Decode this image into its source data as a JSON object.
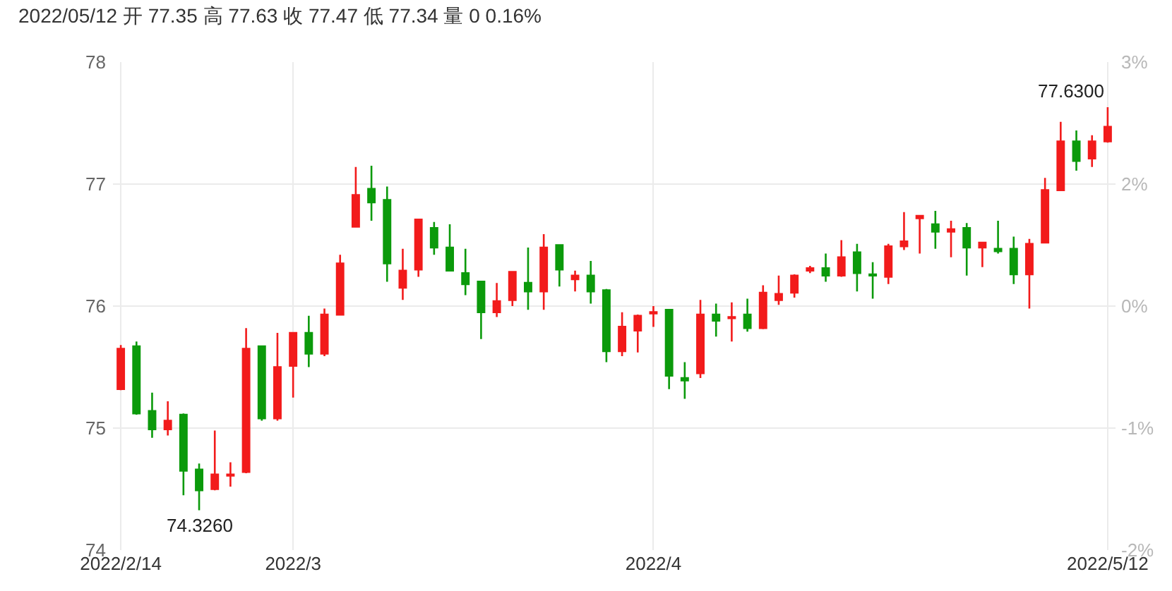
{
  "chart_data": {
    "type": "candlestick",
    "title": "2022/05/12 开 77.35 高 77.63 收 77.47 低 77.34 量 0 0.16%",
    "categories": [
      "2022/2/14",
      null,
      null,
      null,
      null,
      null,
      null,
      null,
      null,
      null,
      null,
      "2022/3",
      null,
      null,
      null,
      null,
      null,
      null,
      null,
      null,
      null,
      null,
      null,
      null,
      null,
      null,
      null,
      null,
      null,
      null,
      null,
      null,
      null,
      null,
      "2022/4",
      null,
      null,
      null,
      null,
      null,
      null,
      null,
      null,
      null,
      null,
      null,
      null,
      null,
      null,
      null,
      null,
      null,
      null,
      null,
      null,
      null,
      null,
      null,
      null,
      null,
      null,
      null,
      null,
      "2022/5/12"
    ],
    "ohlc": [
      [
        75.32,
        75.68,
        75.31,
        75.65
      ],
      [
        75.67,
        75.71,
        75.11,
        75.12
      ],
      [
        75.14,
        75.29,
        74.92,
        74.99
      ],
      [
        74.99,
        75.22,
        74.94,
        75.06
      ],
      [
        75.11,
        75.12,
        74.45,
        74.65
      ],
      [
        74.66,
        74.71,
        74.326,
        74.49
      ],
      [
        74.5,
        74.98,
        74.49,
        74.62
      ],
      [
        74.61,
        74.72,
        74.52,
        74.62
      ],
      [
        74.64,
        75.82,
        74.63,
        75.65
      ],
      [
        75.67,
        75.67,
        75.06,
        75.08
      ],
      [
        75.08,
        75.78,
        75.06,
        75.5
      ],
      [
        75.51,
        75.78,
        75.25,
        75.78
      ],
      [
        75.78,
        75.92,
        75.5,
        75.61
      ],
      [
        75.61,
        75.98,
        75.59,
        75.93
      ],
      [
        75.93,
        76.42,
        75.93,
        76.35
      ],
      [
        76.65,
        77.14,
        76.65,
        76.91
      ],
      [
        76.96,
        77.15,
        76.7,
        76.85
      ],
      [
        76.87,
        76.98,
        76.2,
        76.35
      ],
      [
        76.15,
        76.47,
        76.05,
        76.29
      ],
      [
        76.3,
        76.71,
        76.24,
        76.71
      ],
      [
        76.64,
        76.69,
        76.42,
        76.48
      ],
      [
        76.48,
        76.67,
        76.29,
        76.29
      ],
      [
        76.27,
        76.47,
        76.09,
        76.18
      ],
      [
        76.2,
        76.2,
        75.73,
        75.95
      ],
      [
        75.95,
        76.19,
        75.91,
        76.04
      ],
      [
        76.05,
        76.28,
        76.0,
        76.28
      ],
      [
        76.19,
        76.48,
        75.97,
        76.12
      ],
      [
        76.12,
        76.59,
        75.97,
        76.48
      ],
      [
        76.5,
        76.5,
        76.16,
        76.3
      ],
      [
        76.22,
        76.29,
        76.12,
        76.25
      ],
      [
        76.25,
        76.37,
        76.02,
        76.12
      ],
      [
        76.13,
        76.14,
        75.54,
        75.63
      ],
      [
        75.63,
        75.95,
        75.59,
        75.83
      ],
      [
        75.8,
        75.93,
        75.62,
        75.92
      ],
      [
        75.94,
        76.0,
        75.83,
        75.95
      ],
      [
        75.97,
        75.97,
        75.32,
        75.43
      ],
      [
        75.41,
        75.54,
        75.24,
        75.39
      ],
      [
        75.45,
        76.05,
        75.41,
        75.93
      ],
      [
        75.93,
        76.02,
        75.75,
        75.88
      ],
      [
        75.9,
        76.03,
        75.71,
        75.91
      ],
      [
        75.93,
        76.06,
        75.79,
        75.82
      ],
      [
        75.82,
        76.17,
        75.81,
        76.11
      ],
      [
        76.05,
        76.25,
        76.01,
        76.1
      ],
      [
        76.11,
        76.26,
        76.07,
        76.25
      ],
      [
        76.29,
        76.33,
        76.27,
        76.31
      ],
      [
        76.31,
        76.43,
        76.2,
        76.25
      ],
      [
        76.25,
        76.54,
        76.24,
        76.4
      ],
      [
        76.44,
        76.51,
        76.12,
        76.27
      ],
      [
        76.26,
        76.36,
        76.06,
        76.25
      ],
      [
        76.24,
        76.51,
        76.18,
        76.49
      ],
      [
        76.49,
        76.77,
        76.46,
        76.53
      ],
      [
        76.72,
        76.74,
        76.43,
        76.74
      ],
      [
        76.67,
        76.78,
        76.47,
        76.61
      ],
      [
        76.61,
        76.7,
        76.4,
        76.63
      ],
      [
        76.64,
        76.68,
        76.25,
        76.48
      ],
      [
        76.48,
        76.52,
        76.32,
        76.52
      ],
      [
        76.47,
        76.7,
        76.43,
        76.45
      ],
      [
        76.47,
        76.57,
        76.18,
        76.26
      ],
      [
        76.26,
        76.55,
        75.98,
        76.51
      ],
      [
        76.52,
        77.05,
        76.52,
        76.95
      ],
      [
        76.95,
        77.51,
        76.95,
        77.35
      ],
      [
        77.35,
        77.44,
        77.11,
        77.19
      ],
      [
        77.21,
        77.4,
        77.14,
        77.35
      ],
      [
        77.35,
        77.63,
        77.34,
        77.47
      ]
    ],
    "colors": [
      "#f21b1b",
      "#0b9a0b",
      "#0b9a0b",
      "#f21b1b",
      "#0b9a0b",
      "#0b9a0b",
      "#f21b1b",
      "#f21b1b",
      "#f21b1b",
      "#0b9a0b",
      "#f21b1b",
      "#f21b1b",
      "#0b9a0b",
      "#f21b1b",
      "#f21b1b",
      "#f21b1b",
      "#0b9a0b",
      "#0b9a0b",
      "#f21b1b",
      "#f21b1b",
      "#0b9a0b",
      "#0b9a0b",
      "#0b9a0b",
      "#0b9a0b",
      "#f21b1b",
      "#f21b1b",
      "#0b9a0b",
      "#f21b1b",
      "#0b9a0b",
      "#f21b1b",
      "#0b9a0b",
      "#0b9a0b",
      "#f21b1b",
      "#f21b1b",
      "#f21b1b",
      "#0b9a0b",
      "#0b9a0b",
      "#f21b1b",
      "#0b9a0b",
      "#f21b1b",
      "#0b9a0b",
      "#f21b1b",
      "#f21b1b",
      "#f21b1b",
      "#f21b1b",
      "#0b9a0b",
      "#f21b1b",
      "#0b9a0b",
      "#0b9a0b",
      "#f21b1b",
      "#f21b1b",
      "#f21b1b",
      "#0b9a0b",
      "#f21b1b",
      "#0b9a0b",
      "#f21b1b",
      "#0b9a0b",
      "#0b9a0b",
      "#f21b1b",
      "#f21b1b",
      "#f21b1b",
      "#0b9a0b",
      "#f21b1b",
      "#f21b1b"
    ],
    "ylim": [
      74,
      78
    ],
    "yticks": [
      74,
      75,
      76,
      77,
      78
    ],
    "y2lim": [
      -2.38,
      2.9
    ],
    "y2ticks": [
      {
        "value": -2.38,
        "label": "-2%"
      },
      {
        "value": -1.06,
        "label": "-1%"
      },
      {
        "value": 0.26,
        "label": "0%"
      },
      {
        "value": 1.58,
        "label": "2%"
      },
      {
        "value": 2.9,
        "label": "3%"
      }
    ],
    "grid": true,
    "annotations": [
      {
        "text": "77.6300",
        "x": "2022/5/12",
        "y": 77.63
      },
      {
        "text": "74.3260",
        "y": 74.326
      }
    ]
  }
}
